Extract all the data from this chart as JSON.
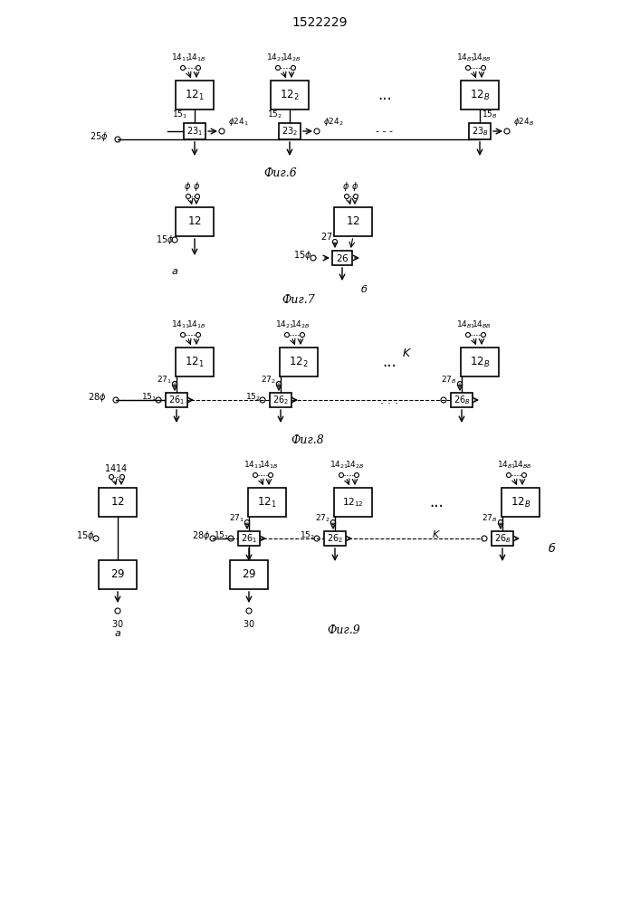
{
  "title": "1522229",
  "fig6_label": "Фиг.6",
  "fig7_label": "Фиг.7",
  "fig8_label": "Фиг.8",
  "fig9_label": "Фиг.9",
  "box_color": "white",
  "line_color": "black",
  "text_color": "black",
  "bg_color": "white"
}
